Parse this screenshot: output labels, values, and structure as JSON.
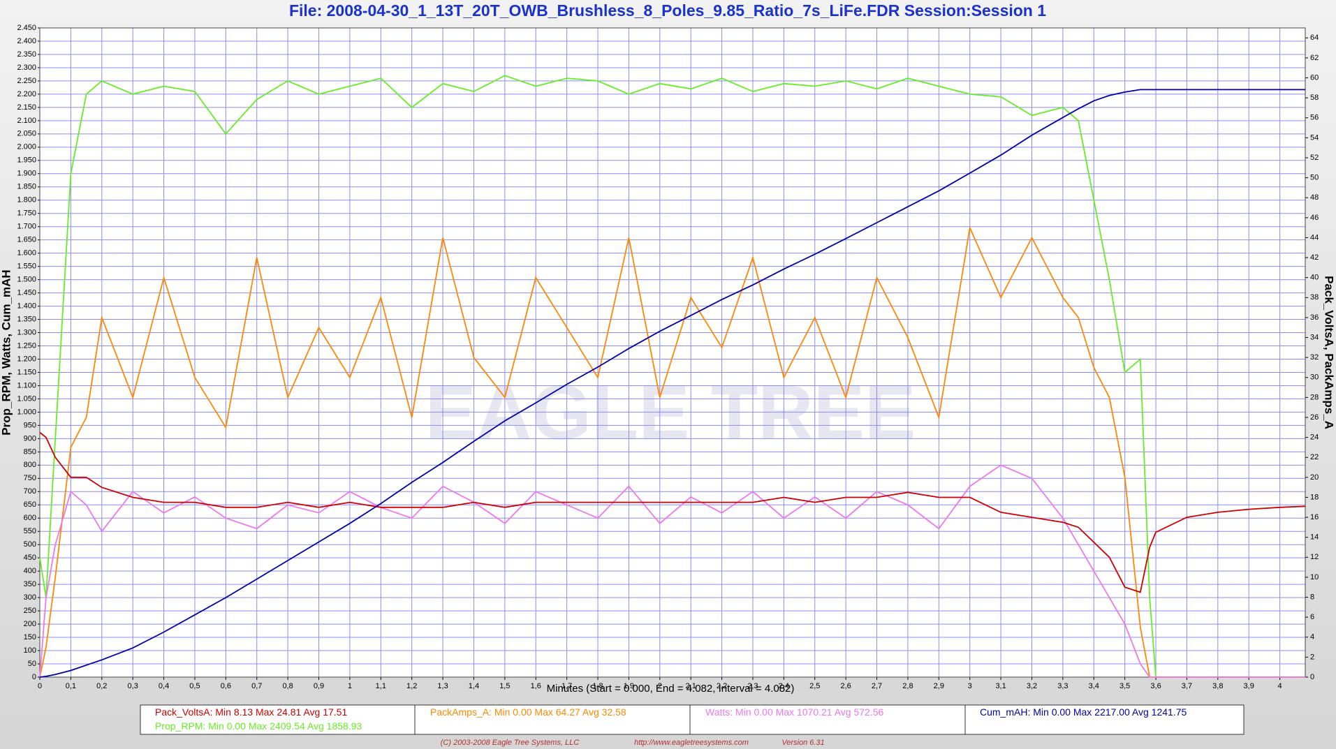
{
  "chart_data": {
    "type": "line",
    "title": "File: 2008-04-30_1_13T_20T_OWB_Brushless_8_Poles_9.85_Ratio_7s_LiFe.FDR    Session:Session 1",
    "xlabel": "Minutes (Start = 0.000,  End = 4.082,  Interval =  4.082)",
    "ylabel": "Prop_RPM, Watts, Cum_mAH",
    "y2label": "Pack_VoltsA, PackAmps_A",
    "watermark": "EAGLE TREE",
    "footer": [
      "(C) 2003-2008 Eagle Tree Systems, LLC",
      "http://www.eagletreesystems.com",
      "Version 6.31"
    ],
    "grid": true,
    "x": [
      0,
      0.02,
      0.05,
      0.1,
      0.15,
      0.2,
      0.3,
      0.4,
      0.5,
      0.6,
      0.7,
      0.8,
      0.9,
      1.0,
      1.1,
      1.2,
      1.3,
      1.4,
      1.5,
      1.6,
      1.7,
      1.8,
      1.9,
      2.0,
      2.1,
      2.2,
      2.3,
      2.4,
      2.5,
      2.6,
      2.7,
      2.8,
      2.9,
      3.0,
      3.1,
      3.2,
      3.3,
      3.35,
      3.4,
      3.45,
      3.5,
      3.55,
      3.58,
      3.6,
      3.7,
      3.8,
      3.9,
      4.0,
      4.082
    ],
    "xlim": [
      0,
      4.082
    ],
    "xticks": [
      0,
      {
        "value": 0.1,
        "label": "0,1"
      },
      {
        "value": 0.2,
        "label": "0,2"
      },
      {
        "value": 0.3,
        "label": "0,3"
      },
      {
        "value": 0.4,
        "label": "0,4"
      },
      {
        "value": 0.5,
        "label": "0,5"
      },
      {
        "value": 0.6,
        "label": "0,6"
      },
      {
        "value": 0.7,
        "label": "0,7"
      },
      {
        "value": 0.8,
        "label": "0,8"
      },
      {
        "value": 0.9,
        "label": "0,9"
      },
      1,
      {
        "value": 1.1,
        "label": "1,1"
      },
      {
        "value": 1.2,
        "label": "1,2"
      },
      {
        "value": 1.3,
        "label": "1,3"
      },
      {
        "value": 1.4,
        "label": "1,4"
      },
      {
        "value": 1.5,
        "label": "1,5"
      },
      {
        "value": 1.6,
        "label": "1,6"
      },
      {
        "value": 1.7,
        "label": "1,7"
      },
      {
        "value": 1.8,
        "label": "1,8"
      },
      {
        "value": 1.9,
        "label": "1,9"
      },
      2,
      {
        "value": 2.1,
        "label": "2,1"
      },
      {
        "value": 2.2,
        "label": "2,2"
      },
      {
        "value": 2.3,
        "label": "2,3"
      },
      {
        "value": 2.4,
        "label": "2,4"
      },
      {
        "value": 2.5,
        "label": "2,5"
      },
      {
        "value": 2.6,
        "label": "2,6"
      },
      {
        "value": 2.7,
        "label": "2,7"
      },
      {
        "value": 2.8,
        "label": "2,8"
      },
      {
        "value": 2.9,
        "label": "2,9"
      },
      3,
      {
        "value": 3.1,
        "label": "3,1"
      },
      {
        "value": 3.2,
        "label": "3,2"
      },
      {
        "value": 3.3,
        "label": "3,3"
      },
      {
        "value": 3.4,
        "label": "3,4"
      },
      {
        "value": 3.5,
        "label": "3,5"
      },
      {
        "value": 3.6,
        "label": "3,6"
      },
      {
        "value": 3.7,
        "label": "3,7"
      },
      {
        "value": 3.8,
        "label": "3,8"
      },
      {
        "value": 3.9,
        "label": "3,9"
      },
      4
    ],
    "ylim": [
      0,
      2450
    ],
    "yticks": [
      0,
      50,
      100,
      150,
      200,
      250,
      300,
      350,
      400,
      450,
      500,
      550,
      600,
      650,
      700,
      750,
      800,
      850,
      900,
      950,
      {
        "value": 1000,
        "label": "1.000"
      },
      {
        "value": 1050,
        "label": "1.050"
      },
      {
        "value": 1100,
        "label": "1.100"
      },
      {
        "value": 1150,
        "label": "1.150"
      },
      {
        "value": 1200,
        "label": "1.200"
      },
      {
        "value": 1250,
        "label": "1.250"
      },
      {
        "value": 1300,
        "label": "1.300"
      },
      {
        "value": 1350,
        "label": "1.350"
      },
      {
        "value": 1400,
        "label": "1.400"
      },
      {
        "value": 1450,
        "label": "1.450"
      },
      {
        "value": 1500,
        "label": "1.500"
      },
      {
        "value": 1550,
        "label": "1.550"
      },
      {
        "value": 1600,
        "label": "1.600"
      },
      {
        "value": 1650,
        "label": "1.650"
      },
      {
        "value": 1700,
        "label": "1.700"
      },
      {
        "value": 1750,
        "label": "1.750"
      },
      {
        "value": 1800,
        "label": "1.800"
      },
      {
        "value": 1850,
        "label": "1.850"
      },
      {
        "value": 1900,
        "label": "1.900"
      },
      {
        "value": 1950,
        "label": "1.950"
      },
      {
        "value": 2000,
        "label": "2.000"
      },
      {
        "value": 2050,
        "label": "2.050"
      },
      {
        "value": 2100,
        "label": "2.100"
      },
      {
        "value": 2150,
        "label": "2.150"
      },
      {
        "value": 2200,
        "label": "2.200"
      },
      {
        "value": 2250,
        "label": "2.250"
      },
      {
        "value": 2300,
        "label": "2.300"
      },
      {
        "value": 2350,
        "label": "2.350"
      },
      {
        "value": 2400,
        "label": "2.400"
      },
      {
        "value": 2450,
        "label": "2.450"
      }
    ],
    "y2lim": [
      0,
      65
    ],
    "y2ticks": [
      0,
      2,
      4,
      6,
      8,
      10,
      12,
      14,
      16,
      18,
      20,
      22,
      24,
      26,
      28,
      30,
      32,
      34,
      36,
      38,
      40,
      42,
      44,
      46,
      48,
      50,
      52,
      54,
      56,
      58,
      60,
      62,
      64
    ],
    "series": [
      {
        "name": "Prop_RPM",
        "stats": ":  Min 0.00   Max 2409.54   Avg 1858.93",
        "color": "#66ee22",
        "axis": "y",
        "values": [
          450,
          300,
          900,
          1900,
          2200,
          2250,
          2200,
          2230,
          2210,
          2050,
          2180,
          2250,
          2200,
          2230,
          2260,
          2150,
          2240,
          2210,
          2270,
          2230,
          2260,
          2250,
          2200,
          2240,
          2220,
          2260,
          2210,
          2240,
          2230,
          2250,
          2220,
          2260,
          2230,
          2200,
          2190,
          2120,
          2150,
          2100,
          1800,
          1500,
          1150,
          1200,
          300,
          0,
          0,
          0,
          0,
          0,
          0
        ]
      },
      {
        "name": "PackAmps_A",
        "stats": ":  Min 0.00   Max 64.27   Avg 32.58",
        "color": "#ff8800",
        "axis": "y2",
        "values": [
          0,
          3,
          10,
          23,
          26,
          36,
          28,
          40,
          30,
          25,
          42,
          28,
          35,
          30,
          38,
          26,
          44,
          32,
          28,
          40,
          35,
          30,
          44,
          28,
          38,
          33,
          42,
          30,
          36,
          28,
          40,
          34,
          26,
          45,
          38,
          44,
          38,
          36,
          31,
          28,
          20,
          5,
          0,
          0,
          0,
          0,
          0,
          0,
          0
        ]
      },
      {
        "name": "Watts",
        "stats": ":  Min 0.00   Max 1070.21   Avg 572.56",
        "color": "#ee77ee",
        "axis": "y",
        "values": [
          0,
          300,
          500,
          700,
          650,
          550,
          700,
          620,
          680,
          600,
          560,
          650,
          620,
          700,
          640,
          600,
          720,
          660,
          580,
          700,
          650,
          600,
          720,
          580,
          680,
          620,
          700,
          600,
          680,
          600,
          700,
          650,
          560,
          720,
          800,
          750,
          600,
          500,
          400,
          300,
          200,
          50,
          0,
          0,
          0,
          0,
          0,
          0,
          0
        ]
      },
      {
        "name": "Pack_VoltsA",
        "stats": ":  Min 8.13   Max 24.81   Avg 17.51",
        "color": "#d00000",
        "axis": "y2",
        "values": [
          24.5,
          24,
          22,
          20,
          20,
          19,
          18,
          17.5,
          17.5,
          17,
          17,
          17.5,
          17,
          17.5,
          17,
          17,
          17,
          17.5,
          17,
          17.5,
          17.5,
          17.5,
          17.5,
          17.5,
          17.5,
          17.5,
          17.5,
          18,
          17.5,
          18,
          18,
          18.5,
          18,
          18,
          16.5,
          16,
          15.5,
          15,
          13.5,
          12,
          9,
          8.5,
          13,
          14.5,
          16,
          16.5,
          16.8,
          17,
          17.1
        ]
      },
      {
        "name": "Cum_mAH",
        "stats": ":  Min 0.00   Max 2217.00   Avg 1241.75",
        "color": "#0000aa",
        "axis": "y",
        "values": [
          0,
          3,
          10,
          25,
          45,
          65,
          110,
          170,
          235,
          300,
          370,
          440,
          510,
          580,
          655,
          735,
          810,
          890,
          967,
          1035,
          1105,
          1170,
          1240,
          1305,
          1365,
          1425,
          1480,
          1540,
          1596,
          1655,
          1715,
          1775,
          1835,
          1902,
          1970,
          2045,
          2112,
          2145,
          2175,
          2195,
          2208,
          2217,
          2217,
          2217,
          2217,
          2217,
          2217,
          2217,
          2217
        ]
      }
    ]
  }
}
